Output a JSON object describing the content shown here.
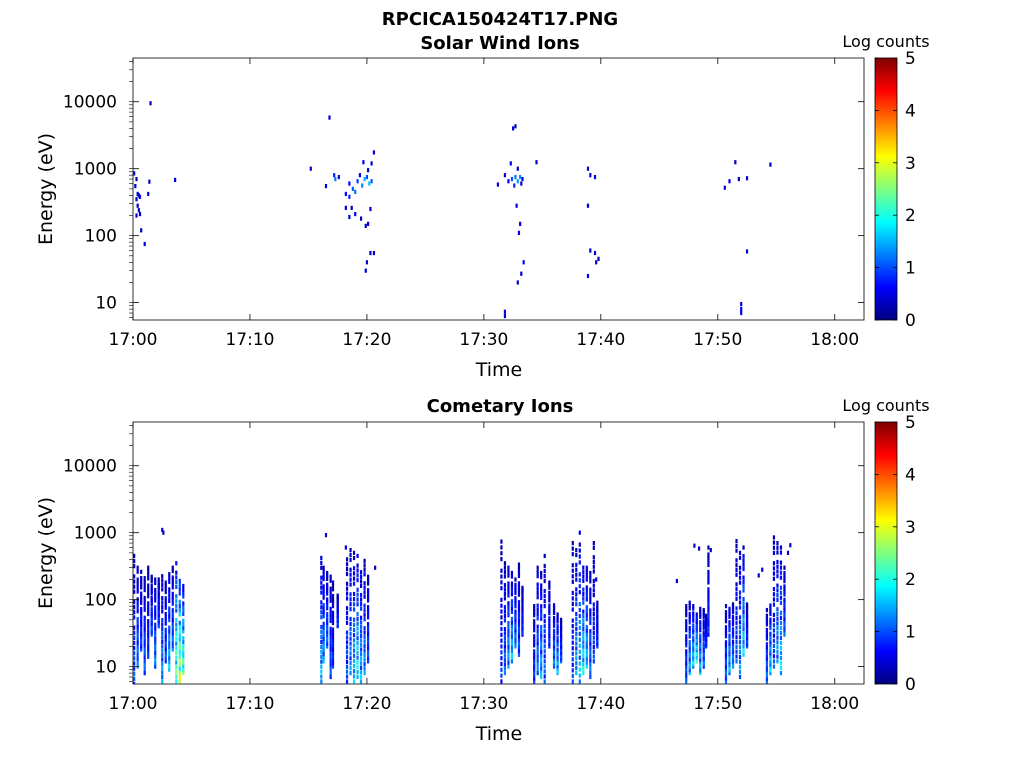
{
  "figure_title": "RPCICA150424T17.PNG",
  "colormap_stops": [
    "#00007f",
    "#0000ff",
    "#007fff",
    "#00ffff",
    "#7fff7f",
    "#ffff00",
    "#ff7f00",
    "#ff0000",
    "#7f0000"
  ],
  "chart_data": [
    {
      "type": "heatmap",
      "title": "Solar Wind Ions",
      "xlabel": "Time",
      "ylabel": "Energy (eV)",
      "x_ticks": [
        "17:00",
        "17:10",
        "17:20",
        "17:30",
        "17:40",
        "17:50",
        "18:00"
      ],
      "x_tick_minutes": [
        0,
        10,
        20,
        30,
        40,
        50,
        60
      ],
      "xlim_minutes": [
        0,
        62.5
      ],
      "y_scale": "log",
      "ylim": [
        5.5,
        45000
      ],
      "y_ticks": [
        10,
        100,
        1000,
        10000
      ],
      "y_tick_labels": [
        "10",
        "100",
        "1000",
        "10000"
      ],
      "colorbar": {
        "label": "Log counts",
        "range": [
          0,
          5
        ],
        "ticks": [
          "0",
          "1",
          "2",
          "3",
          "4",
          "5"
        ]
      },
      "cells": [
        [
          0.1,
          850,
          0.4
        ],
        [
          0.3,
          700,
          0.3
        ],
        [
          0.2,
          550,
          0.4
        ],
        [
          0.4,
          420,
          0.5
        ],
        [
          0.5,
          400,
          0.3
        ],
        [
          0.3,
          350,
          0.4
        ],
        [
          0.6,
          380,
          0.5
        ],
        [
          0.4,
          280,
          0.3
        ],
        [
          0.5,
          240,
          0.4
        ],
        [
          0.3,
          200,
          0.5
        ],
        [
          0.6,
          210,
          0.3
        ],
        [
          0.7,
          120,
          0.3
        ],
        [
          1.0,
          75,
          0.4
        ],
        [
          1.5,
          9500,
          0.4
        ],
        [
          1.3,
          420,
          0.5
        ],
        [
          1.4,
          640,
          0.3
        ],
        [
          3.6,
          680,
          0.4
        ],
        [
          15.2,
          1000,
          0.4
        ],
        [
          16.5,
          550,
          0.5
        ],
        [
          16.8,
          5800,
          0.4
        ],
        [
          17.2,
          800,
          0.8
        ],
        [
          17.3,
          700,
          1.2
        ],
        [
          17.6,
          750,
          0.4
        ],
        [
          18.2,
          420,
          0.6
        ],
        [
          18.5,
          380,
          0.8
        ],
        [
          18.8,
          500,
          1.1
        ],
        [
          18.5,
          600,
          0.6
        ],
        [
          19.0,
          450,
          1.2
        ],
        [
          19.2,
          650,
          0.9
        ],
        [
          19.4,
          800,
          0.5
        ],
        [
          19.6,
          560,
          1.3
        ],
        [
          19.8,
          700,
          1.5
        ],
        [
          20.0,
          750,
          1.0
        ],
        [
          20.2,
          600,
          1.6
        ],
        [
          20.4,
          650,
          1.1
        ],
        [
          20.1,
          950,
          0.4
        ],
        [
          20.4,
          1200,
          0.4
        ],
        [
          19.7,
          1250,
          0.5
        ],
        [
          18.2,
          260,
          0.4
        ],
        [
          18.7,
          260,
          0.3
        ],
        [
          18.5,
          190,
          0.4
        ],
        [
          19.0,
          210,
          0.5
        ],
        [
          19.5,
          180,
          0.3
        ],
        [
          19.9,
          140,
          0.4
        ],
        [
          20.1,
          150,
          0.3
        ],
        [
          20.3,
          250,
          0.4
        ],
        [
          19.9,
          30,
          0.5
        ],
        [
          20.0,
          40,
          0.4
        ],
        [
          20.3,
          55,
          0.4
        ],
        [
          20.6,
          55,
          0.3
        ],
        [
          20.6,
          1750,
          0.4
        ],
        [
          31.8,
          6.3,
          0.4
        ],
        [
          31.8,
          7.3,
          0.5
        ],
        [
          32.5,
          4000,
          0.4
        ],
        [
          32.7,
          4300,
          0.3
        ],
        [
          31.8,
          800,
          0.4
        ],
        [
          32.3,
          1200,
          0.5
        ],
        [
          32.1,
          650,
          0.6
        ],
        [
          32.4,
          700,
          1.0
        ],
        [
          32.7,
          750,
          1.2
        ],
        [
          32.9,
          650,
          1.4
        ],
        [
          33.1,
          750,
          1.3
        ],
        [
          32.6,
          560,
          0.8
        ],
        [
          33.2,
          600,
          0.5
        ],
        [
          32.9,
          1000,
          0.4
        ],
        [
          33.3,
          700,
          0.5
        ],
        [
          31.2,
          580,
          0.4
        ],
        [
          34.5,
          1250,
          0.4
        ],
        [
          32.8,
          280,
          0.4
        ],
        [
          33.1,
          150,
          0.5
        ],
        [
          33.0,
          110,
          0.4
        ],
        [
          33.4,
          40,
          0.5
        ],
        [
          33.2,
          27,
          0.4
        ],
        [
          32.9,
          20,
          0.4
        ],
        [
          38.9,
          1000,
          0.4
        ],
        [
          39.1,
          800,
          0.5
        ],
        [
          39.5,
          750,
          0.4
        ],
        [
          38.9,
          280,
          0.3
        ],
        [
          38.9,
          25,
          0.5
        ],
        [
          39.1,
          60,
          0.4
        ],
        [
          39.5,
          55,
          0.5
        ],
        [
          39.6,
          40,
          0.4
        ],
        [
          39.8,
          45,
          0.3
        ],
        [
          50.6,
          520,
          0.4
        ],
        [
          51.0,
          650,
          0.5
        ],
        [
          51.5,
          1250,
          0.4
        ],
        [
          51.8,
          700,
          0.3
        ],
        [
          52.5,
          720,
          0.4
        ],
        [
          52.0,
          9.5,
          0.5
        ],
        [
          52.0,
          8.0,
          0.6
        ],
        [
          52.0,
          7.0,
          0.5
        ],
        [
          52.5,
          58,
          0.4
        ],
        [
          54.5,
          1150,
          0.3
        ]
      ]
    },
    {
      "type": "heatmap",
      "title": "Cometary Ions",
      "xlabel": "Time",
      "ylabel": "Energy (eV)",
      "x_ticks": [
        "17:00",
        "17:10",
        "17:20",
        "17:30",
        "17:40",
        "17:50",
        "18:00"
      ],
      "x_tick_minutes": [
        0,
        10,
        20,
        30,
        40,
        50,
        60
      ],
      "xlim_minutes": [
        0,
        62.5
      ],
      "y_scale": "log",
      "ylim": [
        5.5,
        45000
      ],
      "y_ticks": [
        10,
        100,
        1000,
        10000
      ],
      "y_tick_labels": [
        "10",
        "100",
        "1000",
        "10000"
      ],
      "colorbar": {
        "label": "Log counts",
        "range": [
          0,
          5
        ],
        "ticks": [
          "0",
          "1",
          "2",
          "3",
          "4",
          "5"
        ]
      },
      "columns": [
        [
          0.1,
          5.5,
          450,
          1.2
        ],
        [
          0.4,
          10,
          300,
          1.4
        ],
        [
          0.7,
          18,
          260,
          1.1
        ],
        [
          1.0,
          8,
          240,
          1.3
        ],
        [
          1.3,
          14,
          300,
          1.0
        ],
        [
          1.6,
          30,
          220,
          1.2
        ],
        [
          1.9,
          10,
          200,
          1.5
        ],
        [
          2.2,
          40,
          200,
          1.1
        ],
        [
          2.5,
          6,
          260,
          1.6
        ],
        [
          2.8,
          12,
          180,
          1.2
        ],
        [
          3.1,
          9,
          240,
          1.8
        ],
        [
          3.4,
          18,
          300,
          1.4
        ],
        [
          3.7,
          6,
          350,
          2.8
        ],
        [
          4.0,
          6,
          220,
          3.3
        ],
        [
          4.3,
          8,
          160,
          2.7
        ],
        [
          16.1,
          6,
          420,
          1.8
        ],
        [
          16.3,
          12,
          300,
          1.6
        ],
        [
          16.6,
          20,
          250,
          1.4
        ],
        [
          16.9,
          7,
          220,
          1.2
        ],
        [
          17.1,
          10,
          180,
          1.0
        ],
        [
          17.5,
          40,
          120,
          1.1
        ],
        [
          18.3,
          6,
          400,
          1.2
        ],
        [
          18.6,
          8,
          550,
          1.5
        ],
        [
          18.9,
          6,
          500,
          1.8
        ],
        [
          19.2,
          7,
          450,
          2.1
        ],
        [
          19.5,
          6,
          300,
          1.8
        ],
        [
          19.8,
          8,
          380,
          1.5
        ],
        [
          20.1,
          12,
          220,
          1.2
        ],
        [
          31.5,
          6,
          900,
          1.0
        ],
        [
          31.8,
          8,
          350,
          1.3
        ],
        [
          32.1,
          10,
          300,
          1.6
        ],
        [
          32.4,
          12,
          250,
          1.9
        ],
        [
          32.7,
          20,
          200,
          1.4
        ],
        [
          33.0,
          15,
          380,
          1.2
        ],
        [
          33.3,
          30,
          150,
          1.0
        ],
        [
          34.3,
          6,
          80,
          1.1
        ],
        [
          34.6,
          8,
          300,
          1.4
        ],
        [
          34.9,
          7,
          250,
          1.7
        ],
        [
          35.2,
          6,
          450,
          1.3
        ],
        [
          35.6,
          20,
          180,
          1.0
        ],
        [
          36.0,
          10,
          90,
          1.5
        ],
        [
          36.3,
          8,
          60,
          1.8
        ],
        [
          36.6,
          12,
          50,
          1.2
        ],
        [
          37.6,
          6,
          700,
          1.1
        ],
        [
          37.9,
          8,
          550,
          1.6
        ],
        [
          38.2,
          6,
          1000,
          1.9
        ],
        [
          38.5,
          8,
          350,
          2.1
        ],
        [
          38.8,
          10,
          300,
          1.8
        ],
        [
          39.1,
          7,
          250,
          1.4
        ],
        [
          39.4,
          12,
          700,
          1.1
        ],
        [
          39.7,
          20,
          90,
          1.0
        ],
        [
          47.3,
          6,
          80,
          1.2
        ],
        [
          47.6,
          8,
          90,
          1.7
        ],
        [
          47.9,
          10,
          80,
          2.0
        ],
        [
          48.2,
          12,
          60,
          2.4
        ],
        [
          48.5,
          8,
          80,
          1.8
        ],
        [
          48.8,
          10,
          70,
          1.4
        ],
        [
          49.0,
          20,
          60,
          1.0
        ],
        [
          49.2,
          30,
          600,
          1.0
        ],
        [
          50.7,
          6,
          80,
          1.3
        ],
        [
          51.0,
          8,
          80,
          1.8
        ],
        [
          51.3,
          10,
          85,
          1.5
        ],
        [
          51.6,
          12,
          750,
          1.2
        ],
        [
          51.9,
          7,
          500,
          1.6
        ],
        [
          52.2,
          15,
          600,
          1.9
        ],
        [
          52.5,
          20,
          90,
          1.1
        ],
        [
          54.2,
          6,
          70,
          1.4
        ],
        [
          54.5,
          8,
          90,
          1.9
        ],
        [
          54.8,
          10,
          850,
          1.2
        ],
        [
          55.1,
          12,
          700,
          1.6
        ],
        [
          55.4,
          8,
          600,
          2.0
        ],
        [
          55.7,
          30,
          300,
          1.3
        ]
      ],
      "cells": [
        [
          46.5,
          190,
          0.4
        ],
        [
          48.0,
          640,
          0.5
        ],
        [
          48.4,
          580,
          0.4
        ],
        [
          49.4,
          550,
          0.4
        ],
        [
          53.5,
          230,
          0.4
        ],
        [
          53.8,
          280,
          0.5
        ],
        [
          56.0,
          500,
          0.4
        ],
        [
          56.2,
          650,
          0.5
        ],
        [
          2.5,
          1100,
          0.5
        ],
        [
          2.6,
          1000,
          0.4
        ],
        [
          16.5,
          920,
          0.4
        ],
        [
          18.2,
          600,
          0.4
        ],
        [
          20.7,
          300,
          0.4
        ],
        [
          39.6,
          200,
          0.3
        ]
      ]
    }
  ]
}
